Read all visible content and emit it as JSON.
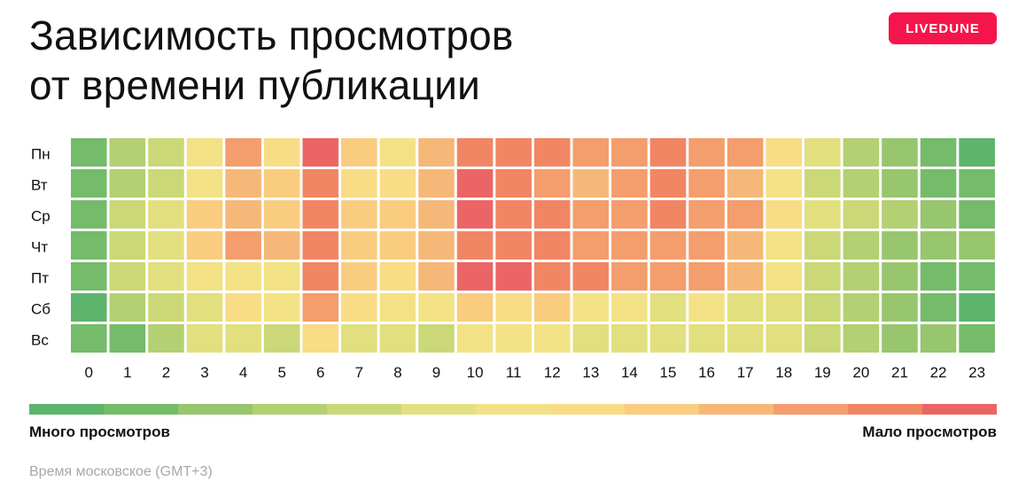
{
  "title_line1": "Зависимость просмотров",
  "title_line2": "от времени публикации",
  "brand": {
    "label": "LIVEDUNE",
    "color": "#f5154b"
  },
  "legend": {
    "left_label": "Много просмотров",
    "right_label": "Мало просмотров",
    "colors": [
      "#5db46a",
      "#74bb6a",
      "#97c66e",
      "#b3d072",
      "#cbd877",
      "#e2df7f",
      "#f3e285",
      "#f8dc86",
      "#f9cc80",
      "#f6b878",
      "#f49d6d",
      "#f18664",
      "#ec6565"
    ]
  },
  "footnote": "Время московское (GMT+3)",
  "chart_data": {
    "type": "heatmap",
    "rows": [
      "Пн",
      "Вт",
      "Ср",
      "Чт",
      "Пт",
      "Сб",
      "Вс"
    ],
    "columns": [
      "0",
      "1",
      "2",
      "3",
      "4",
      "5",
      "6",
      "7",
      "8",
      "9",
      "10",
      "11",
      "12",
      "13",
      "14",
      "15",
      "16",
      "17",
      "18",
      "19",
      "20",
      "21",
      "22",
      "23"
    ],
    "scale": "0 = много просмотров (зелёный), 12 = мало просмотров (красный)",
    "values": [
      [
        1,
        3,
        4,
        6,
        10,
        7,
        12,
        8,
        6,
        9,
        11,
        11,
        11,
        10,
        10,
        11,
        10,
        10,
        7,
        5,
        3,
        2,
        1,
        0
      ],
      [
        1,
        3,
        4,
        6,
        9,
        8,
        11,
        7,
        7,
        9,
        12,
        11,
        10,
        9,
        10,
        11,
        10,
        9,
        6,
        4,
        3,
        2,
        1,
        1
      ],
      [
        1,
        4,
        5,
        8,
        9,
        8,
        11,
        8,
        8,
        9,
        12,
        11,
        11,
        10,
        10,
        11,
        10,
        10,
        7,
        5,
        4,
        3,
        2,
        1
      ],
      [
        1,
        4,
        5,
        8,
        10,
        9,
        11,
        8,
        8,
        9,
        11,
        11,
        11,
        10,
        10,
        10,
        10,
        9,
        6,
        4,
        3,
        2,
        2,
        2
      ],
      [
        1,
        4,
        5,
        6,
        6,
        6,
        11,
        8,
        7,
        9,
        12,
        12,
        11,
        11,
        10,
        10,
        10,
        9,
        6,
        4,
        3,
        2,
        1,
        1
      ],
      [
        0,
        3,
        4,
        5,
        7,
        6,
        10,
        7,
        6,
        6,
        8,
        7,
        8,
        6,
        6,
        5,
        6,
        5,
        5,
        4,
        3,
        2,
        1,
        0
      ],
      [
        1,
        1,
        3,
        5,
        5,
        4,
        7,
        5,
        5,
        4,
        6,
        6,
        6,
        5,
        5,
        5,
        5,
        5,
        5,
        4,
        3,
        2,
        2,
        1
      ]
    ]
  }
}
